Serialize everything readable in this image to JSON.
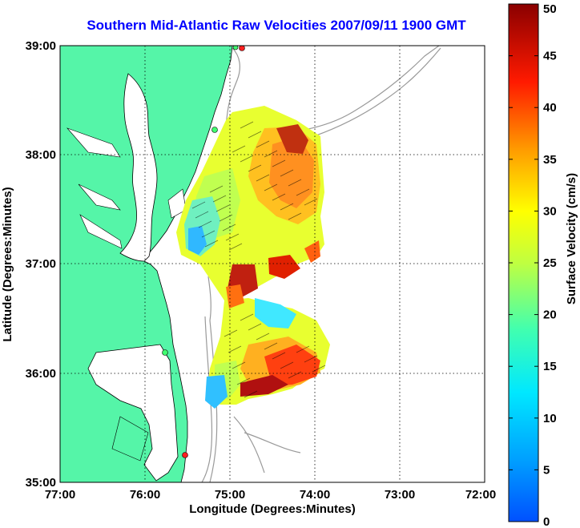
{
  "title": "Southern Mid-Atlantic Raw Velocities 2007/09/11 1900 GMT",
  "xlabel": "Longitude (Degrees:Minutes)",
  "ylabel": "Latitude (Degrees:Minutes)",
  "xticks": [
    "77:00",
    "76:00",
    "75:00",
    "74:00",
    "73:00",
    "72:00"
  ],
  "yticks": [
    "39:00",
    "38:00",
    "37:00",
    "36:00",
    "35:00"
  ],
  "colorbar": {
    "label": "Surface Velocity (cm/s)",
    "ticks": [
      "50",
      "45",
      "40",
      "35",
      "30",
      "25",
      "20",
      "15",
      "10",
      "5",
      "0"
    ],
    "min": 0,
    "max": 50
  },
  "colors": {
    "land": "#55f5a8",
    "title": "#0000ff",
    "station": "#ff2020"
  }
}
